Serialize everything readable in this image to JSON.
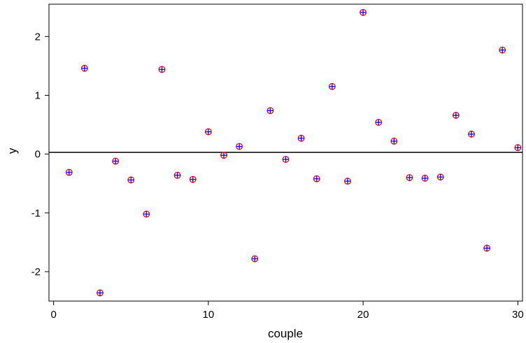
{
  "chart_data": {
    "type": "scatter",
    "title": "",
    "xlabel": "couple",
    "ylabel": "y",
    "xlim": [
      -0.3,
      30.3
    ],
    "ylim": [
      -2.5,
      2.55
    ],
    "xticks": [
      0,
      10,
      20,
      30
    ],
    "yticks": [
      2,
      1,
      0,
      -1,
      -2
    ],
    "xtick_labels": [
      "0",
      "10",
      "20",
      "30"
    ],
    "ytick_labels": [
      "2",
      "1",
      "0",
      "-1",
      "-2"
    ],
    "grid": false,
    "legend": "none",
    "reference_line": {
      "y": 0.03
    },
    "marker": {
      "shape": "circle-plus",
      "outline_color": "#ff0000",
      "cross_color": "#0000ff"
    },
    "series": [
      {
        "x": [
          1,
          2,
          3,
          4,
          5,
          6,
          7,
          8,
          9,
          10,
          11,
          12,
          13,
          14,
          15,
          16,
          17,
          18,
          19,
          20,
          21,
          22,
          23,
          24,
          25,
          26,
          27,
          28,
          29,
          30
        ],
        "y": [
          -0.31,
          1.46,
          -2.36,
          -0.12,
          -0.44,
          -1.02,
          1.44,
          -0.36,
          -0.43,
          0.38,
          -0.02,
          0.13,
          -1.78,
          0.74,
          -0.09,
          0.27,
          -0.42,
          1.15,
          -0.46,
          2.41,
          0.54,
          0.22,
          -0.4,
          -0.41,
          -0.39,
          0.66,
          0.34,
          -1.6,
          1.77,
          0.11
        ]
      }
    ]
  }
}
